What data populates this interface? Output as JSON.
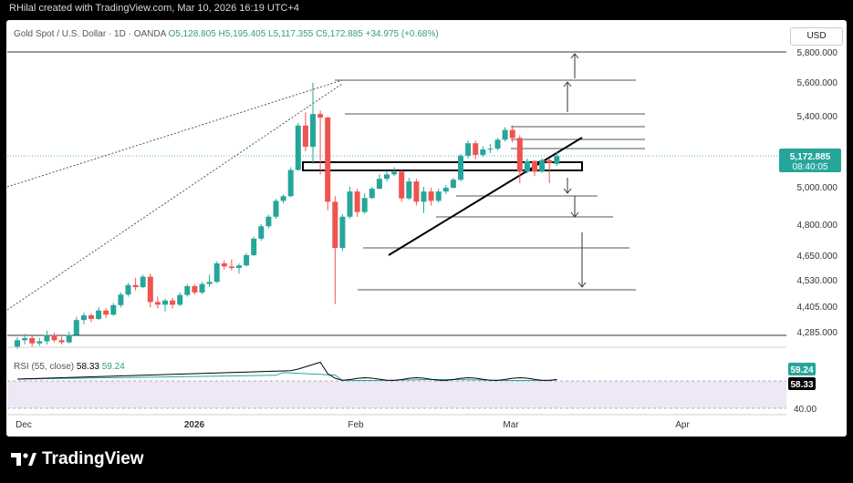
{
  "header": {
    "credit": "RHilal created with TradingView.com, Mar 10, 2026 16:19 UTC+4"
  },
  "legend": {
    "symbol": "Gold Spot / U.S. Dollar · 1D · OANDA",
    "open": "O5,128.805",
    "high": "H5,195.405",
    "low": "L5,117.355",
    "close": "C5,172.885",
    "change": "+34.975 (+0.68%)"
  },
  "currency_button": "USD",
  "price_tag": {
    "price": "5,172.885",
    "countdown": "08:40:05"
  },
  "rsi": {
    "label": "RSI (55, close)",
    "value": "58.33",
    "ma_value": "59.24",
    "tag_ma": "59.24",
    "tag_value": "58.33",
    "level_label": "40.00"
  },
  "brand": {
    "name": "TradingView"
  },
  "colors": {
    "up": "#26a69a",
    "down": "#ef5350",
    "rsi_line": "#000000",
    "rsi_ma": "#26a69a",
    "rsi_band": "#ede7f6"
  },
  "chart_data": {
    "type": "candlestick",
    "instrument": "Gold Spot / U.S. Dollar",
    "timeframe": "1D",
    "y_axis_ticks": [
      "5,800.000",
      "5,600.000",
      "5,400.000",
      "5,172.885",
      "5,000.000",
      "4,800.000",
      "4,650.000",
      "4,530.000",
      "4,405.000",
      "4,285.000"
    ],
    "x_axis_ticks": [
      "Dec",
      "2026",
      "Feb",
      "Mar",
      "Apr"
    ],
    "ylim": [
      4210,
      5880
    ],
    "candles": [
      [
        4215,
        4260,
        4205,
        4245
      ],
      [
        4245,
        4275,
        4225,
        4255
      ],
      [
        4255,
        4265,
        4215,
        4230
      ],
      [
        4230,
        4255,
        4218,
        4240
      ],
      [
        4240,
        4290,
        4225,
        4270
      ],
      [
        4270,
        4280,
        4235,
        4245
      ],
      [
        4245,
        4262,
        4225,
        4235
      ],
      [
        4235,
        4285,
        4230,
        4270
      ],
      [
        4270,
        4355,
        4265,
        4340
      ],
      [
        4340,
        4375,
        4320,
        4362
      ],
      [
        4362,
        4370,
        4330,
        4345
      ],
      [
        4345,
        4400,
        4340,
        4385
      ],
      [
        4385,
        4395,
        4350,
        4365
      ],
      [
        4365,
        4420,
        4360,
        4410
      ],
      [
        4410,
        4470,
        4400,
        4460
      ],
      [
        4460,
        4515,
        4450,
        4505
      ],
      [
        4505,
        4540,
        4480,
        4495
      ],
      [
        4495,
        4555,
        4490,
        4545
      ],
      [
        4545,
        4560,
        4400,
        4425
      ],
      [
        4425,
        4450,
        4395,
        4412
      ],
      [
        4412,
        4440,
        4380,
        4432
      ],
      [
        4432,
        4445,
        4395,
        4412
      ],
      [
        4412,
        4470,
        4405,
        4458
      ],
      [
        4458,
        4510,
        4450,
        4500
      ],
      [
        4500,
        4510,
        4460,
        4470
      ],
      [
        4470,
        4520,
        4462,
        4510
      ],
      [
        4510,
        4555,
        4495,
        4520
      ],
      [
        4520,
        4620,
        4515,
        4610
      ],
      [
        4610,
        4625,
        4580,
        4595
      ],
      [
        4595,
        4630,
        4575,
        4588
      ],
      [
        4588,
        4610,
        4560,
        4600
      ],
      [
        4600,
        4660,
        4595,
        4650
      ],
      [
        4650,
        4740,
        4645,
        4730
      ],
      [
        4730,
        4800,
        4720,
        4790
      ],
      [
        4790,
        4850,
        4780,
        4840
      ],
      [
        4840,
        4935,
        4830,
        4925
      ],
      [
        4925,
        4960,
        4910,
        4950
      ],
      [
        4950,
        5110,
        4945,
        5095
      ],
      [
        5095,
        5360,
        5090,
        5345
      ],
      [
        5345,
        5420,
        5200,
        5225
      ],
      [
        5225,
        5595,
        5130,
        5410
      ],
      [
        5410,
        5430,
        5070,
        5390
      ],
      [
        5390,
        5395,
        4875,
        4920
      ],
      [
        4920,
        4950,
        4415,
        4685
      ],
      [
        4685,
        4855,
        4670,
        4840
      ],
      [
        4840,
        5000,
        4830,
        4975
      ],
      [
        4975,
        4990,
        4840,
        4865
      ],
      [
        4865,
        4965,
        4855,
        4940
      ],
      [
        4940,
        5000,
        4935,
        4990
      ],
      [
        4990,
        5070,
        4985,
        5045
      ],
      [
        5045,
        5090,
        5030,
        5070
      ],
      [
        5070,
        5110,
        5060,
        5085
      ],
      [
        5085,
        5095,
        4920,
        4938
      ],
      [
        4938,
        5050,
        4930,
        5030
      ],
      [
        5030,
        5045,
        4900,
        4920
      ],
      [
        4920,
        5000,
        4860,
        4975
      ],
      [
        4975,
        4995,
        4900,
        4925
      ],
      [
        4925,
        4990,
        4915,
        4975
      ],
      [
        4975,
        5010,
        4960,
        4995
      ],
      [
        4995,
        5050,
        4990,
        5040
      ],
      [
        5040,
        5185,
        5030,
        5175
      ],
      [
        5175,
        5260,
        5160,
        5245
      ],
      [
        5245,
        5260,
        5155,
        5180
      ],
      [
        5180,
        5230,
        5170,
        5210
      ],
      [
        5210,
        5240,
        5190,
        5215
      ],
      [
        5215,
        5275,
        5205,
        5265
      ],
      [
        5265,
        5335,
        5255,
        5320
      ],
      [
        5320,
        5345,
        5250,
        5275
      ],
      [
        5275,
        5290,
        5020,
        5085
      ],
      [
        5085,
        5160,
        5075,
        5145
      ],
      [
        5145,
        5150,
        5060,
        5085
      ],
      [
        5085,
        5160,
        5080,
        5150
      ],
      [
        5150,
        5160,
        5020,
        5135
      ],
      [
        5128.805,
        5195.405,
        5117.355,
        5172.885
      ]
    ],
    "levels": [
      5800,
      5630,
      5415,
      5285,
      5255,
      5228,
      4960,
      4835,
      4690,
      4490,
      4275
    ],
    "rsi_current": 58.33,
    "rsi_ma_current": 59.24
  }
}
